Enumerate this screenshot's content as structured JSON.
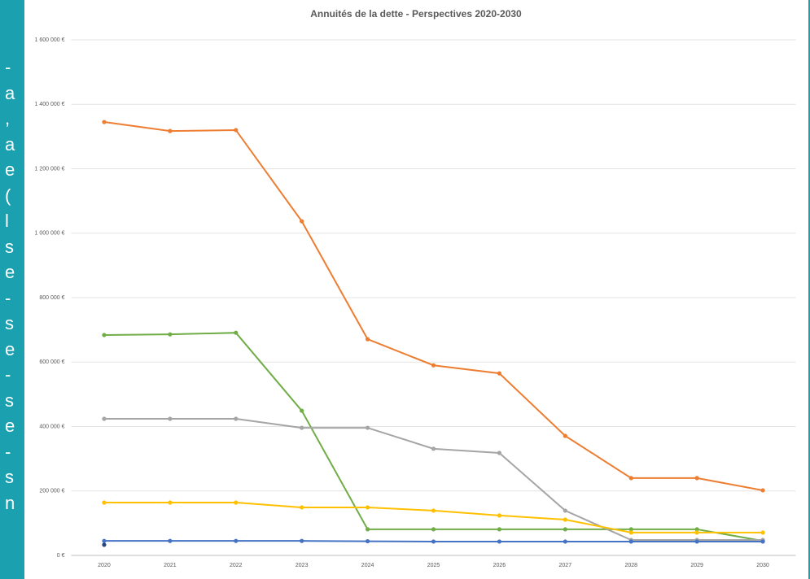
{
  "side_text": [
    "-",
    "a",
    ",",
    "a",
    "e",
    "(",
    "l",
    "s",
    "e",
    "-",
    "s",
    "e",
    "-",
    "s",
    "e",
    "-",
    "s",
    "n"
  ],
  "chart_data": {
    "type": "line",
    "title": "Annuités de la dette - Perspectives 2020-2030",
    "categories": [
      "2020",
      "2021",
      "2022",
      "2023",
      "2024",
      "2025",
      "2026",
      "2027",
      "2028",
      "2029",
      "2030"
    ],
    "series": [
      {
        "color": "#ed7d31",
        "values": [
          1345000,
          1317000,
          1320000,
          1037000,
          671000,
          590000,
          565000,
          371000,
          240000,
          240000,
          202000
        ]
      },
      {
        "color": "#70ad47",
        "values": [
          684000,
          686000,
          691000,
          449000,
          81000,
          81000,
          81000,
          81000,
          81000,
          81000,
          45000
        ]
      },
      {
        "color": "#a5a5a5",
        "values": [
          424000,
          424000,
          424000,
          396000,
          396000,
          331000,
          318000,
          139000,
          48000,
          48000,
          48000
        ]
      },
      {
        "color": "#ffc000",
        "values": [
          164000,
          164000,
          164000,
          149000,
          149000,
          139000,
          124000,
          111000,
          71000,
          71000,
          71000
        ]
      },
      {
        "color": "#4472c4",
        "values": [
          45000,
          45000,
          45000,
          45000,
          44000,
          43000,
          43000,
          43000,
          43000,
          43000,
          43000
        ]
      },
      {
        "color": "#264478",
        "values": [
          33000,
          null,
          null,
          null,
          null,
          null,
          null,
          null,
          null,
          null,
          null
        ]
      }
    ],
    "ylim": [
      0,
      1600000
    ],
    "yticks": [
      {
        "value": 0,
        "label": "0 €"
      },
      {
        "value": 200000,
        "label": "200 000 €"
      },
      {
        "value": 400000,
        "label": "400 000 €"
      },
      {
        "value": 600000,
        "label": "600 000 €"
      },
      {
        "value": 800000,
        "label": "800 000 €"
      },
      {
        "value": 1000000,
        "label": "1 000 000 €"
      },
      {
        "value": 1200000,
        "label": "1 200 000 €"
      },
      {
        "value": 1400000,
        "label": "1 400 000 €"
      },
      {
        "value": 1600000,
        "label": "1 600 000 €"
      }
    ],
    "grid": true
  }
}
